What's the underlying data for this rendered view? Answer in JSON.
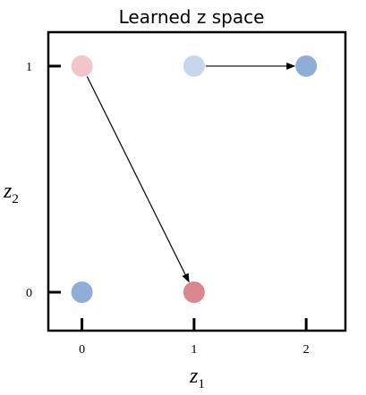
{
  "chart_data": {
    "type": "scatter",
    "title": "Learned z space",
    "xlabel": {
      "main": "z",
      "sub": "1"
    },
    "ylabel": {
      "main": "z",
      "sub": "2"
    },
    "xlim": [
      -0.3,
      2.35
    ],
    "ylim": [
      -0.17,
      1.15
    ],
    "x_ticks": [
      0,
      1,
      2
    ],
    "y_ticks": [
      0,
      1
    ],
    "grid": false,
    "points": [
      {
        "x": 0,
        "y": 1,
        "color": "#f2c6c9"
      },
      {
        "x": 1,
        "y": 1,
        "color": "#c6d6ec"
      },
      {
        "x": 2,
        "y": 1,
        "color": "#8eadd7"
      },
      {
        "x": 0,
        "y": 0,
        "color": "#8eadd7"
      },
      {
        "x": 1,
        "y": 0,
        "color": "#d9888d"
      }
    ],
    "arrows": [
      {
        "from": [
          1,
          1
        ],
        "to": [
          2,
          1
        ]
      },
      {
        "from": [
          0,
          1
        ],
        "to": [
          1,
          0
        ]
      }
    ]
  }
}
